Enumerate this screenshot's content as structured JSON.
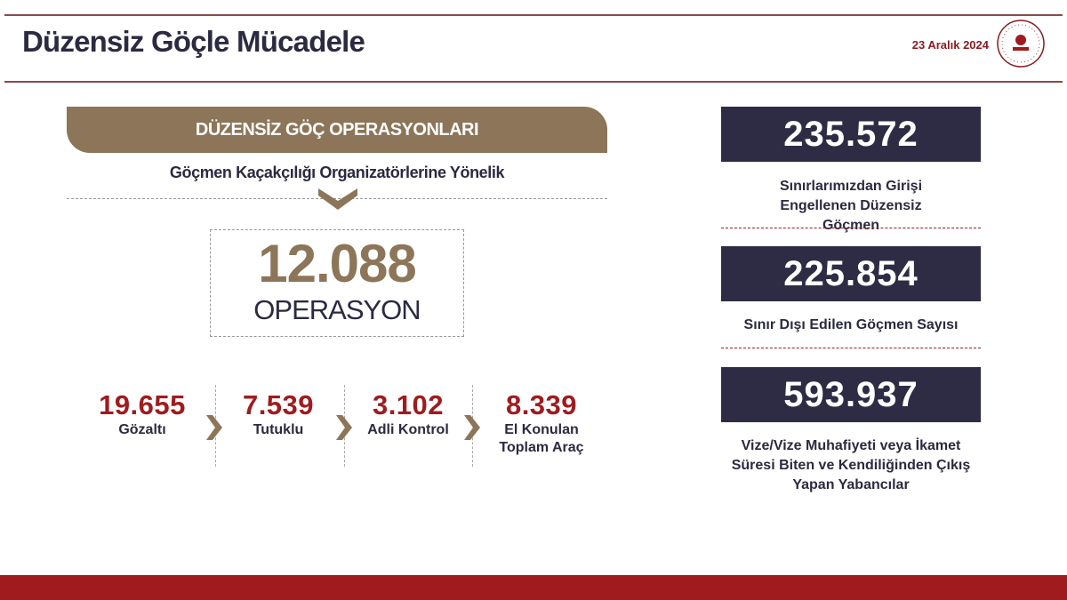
{
  "header": {
    "title": "Düzensiz Göçle Mücadele",
    "date": "23 Aralık 2024",
    "logo_icon": "ministry-seal-icon"
  },
  "operations": {
    "banner": "DÜZENSİZ GÖÇ OPERASYONLARI",
    "subtitle": "Göçmen Kaçakçılığı Organizatörlerine Yönelik",
    "total": "12.088",
    "total_label": "OPERASYON",
    "stats": [
      {
        "value": "19.655",
        "label": "Gözaltı"
      },
      {
        "value": "7.539",
        "label": "Tutuklu"
      },
      {
        "value": "3.102",
        "label": "Adli Kontrol"
      },
      {
        "value": "8.339",
        "label": "El Konulan Toplam Araç"
      }
    ]
  },
  "right": [
    {
      "value": "235.572",
      "label": "Sınırlarımızdan Girişi Engellenen Düzensiz Göçmen"
    },
    {
      "value": "225.854",
      "label": "Sınır Dışı Edilen Göçmen Sayısı"
    },
    {
      "value": "593.937",
      "label": "Vize/Vize Muhafiyeti veya İkamet Süresi Biten ve Kendiliğinden Çıkış Yapan Yabancılar"
    }
  ],
  "colors": {
    "gold": "#8c7558",
    "navy": "#2e2c45",
    "red": "#a01b1e"
  }
}
